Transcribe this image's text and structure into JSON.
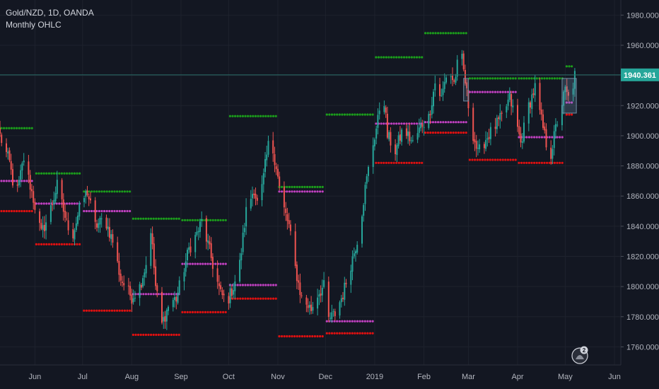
{
  "header": {
    "symbol_line": "Gold/NZD, 1D, OANDA",
    "indicator_line": "Monthly OHLC"
  },
  "badge": {
    "count": "2"
  },
  "colors": {
    "background": "#131722",
    "up": "#26a69a",
    "down": "#ef5350",
    "high_level": "#1b9e1b",
    "low_level": "#e01010",
    "open_level": "#c040c0",
    "grid": "#1e222d",
    "axis_text": "#b2b5be",
    "current_price_line": "#2a6f6a",
    "current_price_tag": "#26a69a"
  },
  "chart_data": {
    "type": "candlestick",
    "title": "Gold/NZD, 1D, OANDA",
    "indicator": "Monthly OHLC",
    "y_range": [
      1748,
      1990
    ],
    "y_ticks": [
      1760,
      1780,
      1800,
      1820,
      1840,
      1860,
      1880,
      1900,
      1920,
      1940,
      1960,
      1980
    ],
    "y_tick_labels": [
      "1760.000",
      "1780.000",
      "1800.000",
      "1820.000",
      "1840.000",
      "1860.000",
      "1880.000",
      "1900.000",
      "1920.000",
      "1940.000",
      "1960.000",
      "1980.000"
    ],
    "x_range": [
      "2018-05-10",
      "2019-06-05"
    ],
    "x_ticks": [
      {
        "date": "2018-06-01",
        "label": "Jun"
      },
      {
        "date": "2018-07-01",
        "label": "Jul"
      },
      {
        "date": "2018-08-01",
        "label": "Aug"
      },
      {
        "date": "2018-09-01",
        "label": "Sep"
      },
      {
        "date": "2018-10-01",
        "label": "Oct"
      },
      {
        "date": "2018-11-01",
        "label": "Nov"
      },
      {
        "date": "2018-12-01",
        "label": "Dec"
      },
      {
        "date": "2019-01-01",
        "label": "2019"
      },
      {
        "date": "2019-02-01",
        "label": "Feb"
      },
      {
        "date": "2019-03-01",
        "label": "Mar"
      },
      {
        "date": "2019-04-01",
        "label": "Apr"
      },
      {
        "date": "2019-05-01",
        "label": "May"
      },
      {
        "date": "2019-06-01",
        "label": "Jun"
      }
    ],
    "current_price": 1940.361,
    "current_price_label": "1940.361",
    "monthly_levels": [
      {
        "start": "2018-05-10",
        "end": "2018-05-31",
        "high": 1905,
        "open": 1870,
        "low": 1850
      },
      {
        "start": "2018-06-01",
        "end": "2018-06-29",
        "high": 1875,
        "open": 1855,
        "low": 1828
      },
      {
        "start": "2018-07-01",
        "end": "2018-07-31",
        "high": 1863,
        "open": 1850,
        "low": 1784
      },
      {
        "start": "2018-08-01",
        "end": "2018-08-31",
        "high": 1845,
        "open": 1795,
        "low": 1768
      },
      {
        "start": "2018-09-01",
        "end": "2018-09-30",
        "high": 1844,
        "open": 1815,
        "low": 1783
      },
      {
        "start": "2018-10-01",
        "end": "2018-10-31",
        "high": 1913,
        "open": 1801,
        "low": 1792
      },
      {
        "start": "2018-11-01",
        "end": "2018-11-30",
        "high": 1866,
        "open": 1863,
        "low": 1767
      },
      {
        "start": "2018-12-01",
        "end": "2018-12-31",
        "high": 1914,
        "open": 1777,
        "low": 1769
      },
      {
        "start": "2019-01-01",
        "end": "2019-01-31",
        "high": 1952,
        "open": 1908,
        "low": 1882
      },
      {
        "start": "2019-02-01",
        "end": "2019-02-28",
        "high": 1968,
        "open": 1909,
        "low": 1902
      },
      {
        "start": "2019-03-01",
        "end": "2019-03-31",
        "high": 1938,
        "open": 1929,
        "low": 1884
      },
      {
        "start": "2019-04-01",
        "end": "2019-04-30",
        "high": 1938,
        "open": 1899,
        "low": 1882
      },
      {
        "start": "2019-05-01",
        "end": "2019-05-06",
        "high": 1946,
        "open": 1922,
        "low": 1914
      }
    ],
    "waypoints": [
      [
        "2018-05-10",
        1900
      ],
      [
        "2018-05-16",
        1882
      ],
      [
        "2018-05-20",
        1858
      ],
      [
        "2018-05-25",
        1885
      ],
      [
        "2018-05-31",
        1858
      ],
      [
        "2018-06-05",
        1835
      ],
      [
        "2018-06-10",
        1848
      ],
      [
        "2018-06-15",
        1867
      ],
      [
        "2018-06-21",
        1842
      ],
      [
        "2018-06-25",
        1835
      ],
      [
        "2018-06-30",
        1855
      ],
      [
        "2018-07-04",
        1863
      ],
      [
        "2018-07-09",
        1840
      ],
      [
        "2018-07-15",
        1845
      ],
      [
        "2018-07-20",
        1830
      ],
      [
        "2018-07-25",
        1805
      ],
      [
        "2018-08-01",
        1793
      ],
      [
        "2018-08-06",
        1800
      ],
      [
        "2018-08-10",
        1815
      ],
      [
        "2018-08-13",
        1838
      ],
      [
        "2018-08-16",
        1800
      ],
      [
        "2018-08-20",
        1775
      ],
      [
        "2018-08-25",
        1790
      ],
      [
        "2018-08-29",
        1792
      ],
      [
        "2018-09-02",
        1808
      ],
      [
        "2018-09-06",
        1825
      ],
      [
        "2018-09-11",
        1835
      ],
      [
        "2018-09-14",
        1843
      ],
      [
        "2018-09-18",
        1828
      ],
      [
        "2018-09-22",
        1810
      ],
      [
        "2018-09-26",
        1795
      ],
      [
        "2018-09-30",
        1790
      ],
      [
        "2018-10-04",
        1800
      ],
      [
        "2018-10-08",
        1815
      ],
      [
        "2018-10-12",
        1850
      ],
      [
        "2018-10-17",
        1865
      ],
      [
        "2018-10-20",
        1850
      ],
      [
        "2018-10-24",
        1880
      ],
      [
        "2018-10-27",
        1900
      ],
      [
        "2018-10-31",
        1880
      ],
      [
        "2018-11-03",
        1858
      ],
      [
        "2018-11-08",
        1840
      ],
      [
        "2018-11-12",
        1812
      ],
      [
        "2018-11-16",
        1792
      ],
      [
        "2018-11-22",
        1785
      ],
      [
        "2018-11-26",
        1795
      ],
      [
        "2018-11-30",
        1800
      ],
      [
        "2018-12-03",
        1778
      ],
      [
        "2018-12-07",
        1782
      ],
      [
        "2018-12-12",
        1795
      ],
      [
        "2018-12-17",
        1815
      ],
      [
        "2018-12-22",
        1835
      ],
      [
        "2018-12-26",
        1865
      ],
      [
        "2018-12-30",
        1890
      ],
      [
        "2019-01-03",
        1910
      ],
      [
        "2019-01-06",
        1935
      ],
      [
        "2019-01-09",
        1900
      ],
      [
        "2019-01-14",
        1890
      ],
      [
        "2019-01-19",
        1905
      ],
      [
        "2019-01-25",
        1895
      ],
      [
        "2019-01-31",
        1908
      ],
      [
        "2019-02-04",
        1912
      ],
      [
        "2019-02-08",
        1935
      ],
      [
        "2019-02-12",
        1925
      ],
      [
        "2019-02-16",
        1945
      ],
      [
        "2019-02-20",
        1935
      ],
      [
        "2019-02-24",
        1958
      ],
      [
        "2019-02-28",
        1928
      ],
      [
        "2019-03-03",
        1905
      ],
      [
        "2019-03-07",
        1888
      ],
      [
        "2019-03-12",
        1898
      ],
      [
        "2019-03-17",
        1905
      ],
      [
        "2019-03-22",
        1912
      ],
      [
        "2019-03-27",
        1925
      ],
      [
        "2019-03-31",
        1910
      ],
      [
        "2019-04-03",
        1895
      ],
      [
        "2019-04-08",
        1920
      ],
      [
        "2019-04-12",
        1932
      ],
      [
        "2019-04-15",
        1915
      ],
      [
        "2019-04-19",
        1895
      ],
      [
        "2019-04-22",
        1888
      ],
      [
        "2019-04-25",
        1905
      ],
      [
        "2019-04-28",
        1918
      ],
      [
        "2019-05-01",
        1930
      ],
      [
        "2019-05-04",
        1922
      ],
      [
        "2019-05-07",
        1940
      ]
    ]
  }
}
